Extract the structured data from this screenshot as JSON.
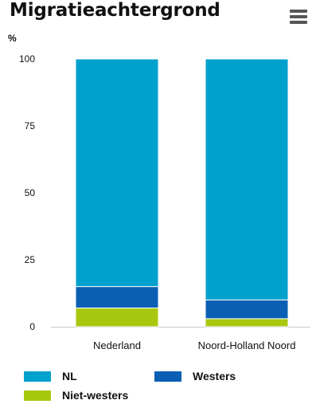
{
  "header": {
    "title": "Migratieachtergrond",
    "menu_icon": "hamburger-menu-icon"
  },
  "chart_data": {
    "type": "bar",
    "stacked": true,
    "ylabel": "%",
    "ylim": [
      0,
      100
    ],
    "yticks": [
      0,
      25,
      50,
      75,
      100
    ],
    "grid": false,
    "legend_position": "bottom",
    "categories": [
      "Nederland",
      "Noord-Holland Noord"
    ],
    "series": [
      {
        "name": "Niet-westers",
        "color": "#a8c80f",
        "values": [
          7,
          3
        ]
      },
      {
        "name": "Westers",
        "color": "#0a5fb4",
        "values": [
          8,
          7
        ]
      },
      {
        "name": "NL",
        "color": "#00a1cd",
        "values": [
          85,
          90
        ]
      }
    ]
  },
  "legend": [
    {
      "label": "NL",
      "color": "#00a1cd"
    },
    {
      "label": "Westers",
      "color": "#0a5fb4"
    },
    {
      "label": "Niet-westers",
      "color": "#a8c80f"
    }
  ]
}
